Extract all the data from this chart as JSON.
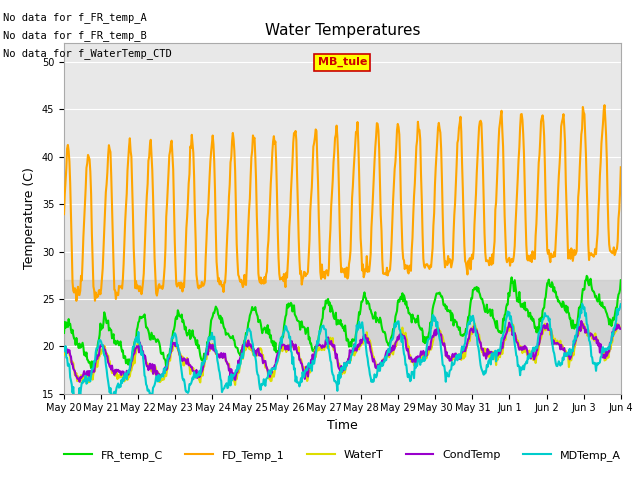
{
  "title": "Water Temperatures",
  "xlabel": "Time",
  "ylabel": "Temperature (C)",
  "ylim": [
    15,
    52
  ],
  "yticks": [
    15,
    20,
    25,
    30,
    35,
    40,
    45,
    50
  ],
  "plot_bg_color": "#e8e8e8",
  "band_color": "#d3d3d3",
  "band_range": [
    20,
    27
  ],
  "annotations": [
    "No data for f_FR_temp_A",
    "No data for f_FR_temp_B",
    "No data for f_WaterTemp_CTD"
  ],
  "mb_tule_box": {
    "text": "MB_tule",
    "color": "#cc0000",
    "bg": "#ffff00"
  },
  "legend_entries": [
    {
      "label": "FR_temp_C",
      "color": "#00dd00",
      "lw": 1.5
    },
    {
      "label": "FD_Temp_1",
      "color": "#ffa500",
      "lw": 1.5
    },
    {
      "label": "WaterT",
      "color": "#dddd00",
      "lw": 1.5
    },
    {
      "label": "CondTemp",
      "color": "#9900cc",
      "lw": 1.5
    },
    {
      "label": "MDTemp_A",
      "color": "#00cccc",
      "lw": 1.5
    }
  ],
  "tick_labels": [
    "May 20",
    "May 21",
    "May 22",
    "May 23",
    "May 24",
    "May 25",
    "May 26",
    "May 27",
    "May 28",
    "May 29",
    "May 30",
    "May 31",
    "Jun 1",
    "Jun 2",
    "Jun 3",
    "Jun 4"
  ],
  "tick_fontsize": 7,
  "axis_label_fontsize": 9,
  "title_fontsize": 11
}
